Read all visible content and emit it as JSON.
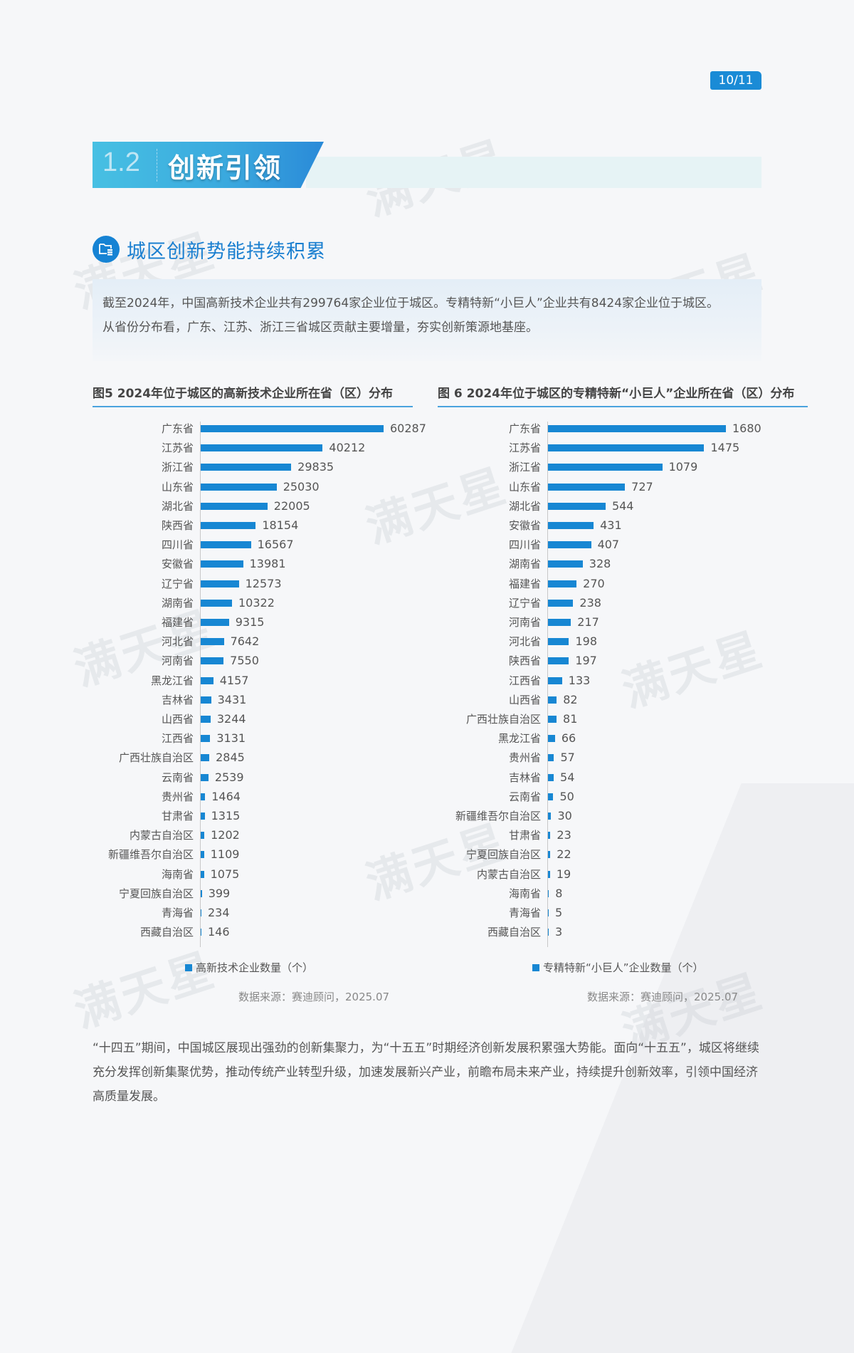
{
  "page": {
    "indicator": "10/11"
  },
  "section": {
    "number": "1.2",
    "title": "创新引领"
  },
  "subsection": {
    "icon": "folder-database-icon",
    "title": "城区创新势能持续积累"
  },
  "intro": {
    "line1": "截至2024年，中国高新技术企业共有299764家企业位于城区。专精特新“小巨人”企业共有8424家企业位于城区。",
    "line2": "从省份分布看，广东、江苏、浙江三省城区贡献主要增量，夯实创新策源地基座。"
  },
  "watermark": "满天星",
  "colors": {
    "accent": "#1787d3",
    "banner_start": "#47c0e3",
    "banner_end": "#2a8ad8",
    "title_blue": "#1a7fd0"
  },
  "chart_data": [
    {
      "type": "bar",
      "orientation": "horizontal",
      "title": "图5  2024年位于城区的高新技术企业所在省（区）分布",
      "legend": "高新技术企业数量（个）",
      "source": "数据来源：赛迪顾问，2025.07",
      "xlabel": "",
      "ylabel": "",
      "xlim": [
        0,
        60287
      ],
      "grid": false,
      "categories": [
        "广东省",
        "江苏省",
        "浙江省",
        "山东省",
        "湖北省",
        "陕西省",
        "四川省",
        "安徽省",
        "辽宁省",
        "湖南省",
        "福建省",
        "河北省",
        "河南省",
        "黑龙江省",
        "吉林省",
        "山西省",
        "江西省",
        "广西壮族自治区",
        "云南省",
        "贵州省",
        "甘肃省",
        "内蒙古自治区",
        "新疆维吾尔自治区",
        "海南省",
        "宁夏回族自治区",
        "青海省",
        "西藏自治区"
      ],
      "values": [
        60287,
        40212,
        29835,
        25030,
        22005,
        18154,
        16567,
        13981,
        12573,
        10322,
        9315,
        7642,
        7550,
        4157,
        3431,
        3244,
        3131,
        2845,
        2539,
        1464,
        1315,
        1202,
        1109,
        1075,
        399,
        234,
        146
      ]
    },
    {
      "type": "bar",
      "orientation": "horizontal",
      "title": "图 6  2024年位于城区的专精特新“小巨人”企业所在省（区）分布",
      "legend": "专精特新“小巨人”企业数量（个）",
      "source": "数据来源：赛迪顾问，2025.07",
      "xlabel": "",
      "ylabel": "",
      "xlim": [
        0,
        1680
      ],
      "grid": false,
      "categories": [
        "广东省",
        "江苏省",
        "浙江省",
        "山东省",
        "湖北省",
        "安徽省",
        "四川省",
        "湖南省",
        "福建省",
        "辽宁省",
        "河南省",
        "河北省",
        "陕西省",
        "江西省",
        "山西省",
        "广西壮族自治区",
        "黑龙江省",
        "贵州省",
        "吉林省",
        "云南省",
        "新疆维吾尔自治区",
        "甘肃省",
        "宁夏回族自治区",
        "内蒙古自治区",
        "海南省",
        "青海省",
        "西藏自治区"
      ],
      "values": [
        1680,
        1475,
        1079,
        727,
        544,
        431,
        407,
        328,
        270,
        238,
        217,
        198,
        197,
        133,
        82,
        81,
        66,
        57,
        54,
        50,
        30,
        23,
        22,
        19,
        8,
        5,
        3
      ]
    }
  ],
  "conclusion": "“十四五”期间，中国城区展现出强劲的创新集聚力，为“十五五”时期经济创新发展积累强大势能。面向“十五五”，城区将继续充分发挥创新集聚优势，推动传统产业转型升级，加速发展新兴产业，前瞻布局未来产业，持续提升创新效率，引领中国经济高质量发展。"
}
